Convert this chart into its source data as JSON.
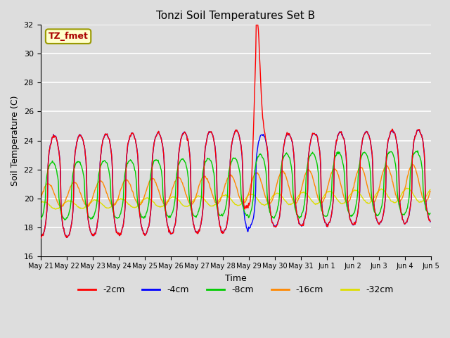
{
  "title": "Tonzi Soil Temperatures Set B",
  "xlabel": "Time",
  "ylabel": "Soil Temperature (C)",
  "ylim": [
    16,
    32
  ],
  "yticks": [
    16,
    18,
    20,
    22,
    24,
    26,
    28,
    30,
    32
  ],
  "annotation_text": "TZ_fmet",
  "annotation_color": "#aa0000",
  "annotation_bg": "#ffffcc",
  "annotation_border": "#999900",
  "bg_color": "#dddddd",
  "plot_bg": "#dddddd",
  "grid_color": "#ffffff",
  "series_colors": {
    "-2cm": "#ff0000",
    "-4cm": "#0000ff",
    "-8cm": "#00cc00",
    "-16cm": "#ff8800",
    "-32cm": "#dddd00"
  },
  "x_tick_labels": [
    "May 21",
    "May 22",
    "May 23",
    "May 24",
    "May 25",
    "May 26",
    "May 27",
    "May 28",
    "May 29",
    "May 30",
    "May 31",
    "Jun 1",
    "Jun 2",
    "Jun 3",
    "Jun 4",
    "Jun 5"
  ],
  "num_days": 15,
  "n_per_day": 48
}
